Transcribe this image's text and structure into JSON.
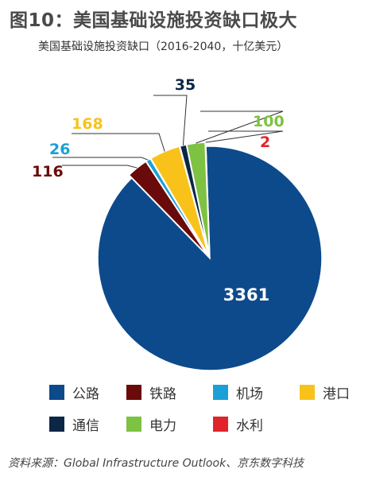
{
  "figure": {
    "title": "图10：美国基础设施投资缺口极大",
    "source": "资料来源：Global Infrastructure Outlook、京东数字科技"
  },
  "chart_data": {
    "type": "pie",
    "title": "美国基础设施投资缺口（2016-2040，十亿美元）",
    "categories": [
      "公路",
      "铁路",
      "机场",
      "港口",
      "通信",
      "电力",
      "水利"
    ],
    "values": [
      3361,
      116,
      26,
      168,
      35,
      100,
      2
    ],
    "data_labels": [
      "3361",
      "116",
      "26",
      "168",
      "35",
      "100",
      "2"
    ],
    "colors": [
      "#0d4a8c",
      "#6a0a0a",
      "#1aa0d6",
      "#f9c21b",
      "#0b2745",
      "#7dc242",
      "#e0242a"
    ],
    "label_colors": [
      "#ffffff",
      "#6a0a0a",
      "#1aa0d6",
      "#f9c21b",
      "#0b2745",
      "#7dc242",
      "#e0242a"
    ],
    "legend_position": "bottom",
    "grid": false
  }
}
